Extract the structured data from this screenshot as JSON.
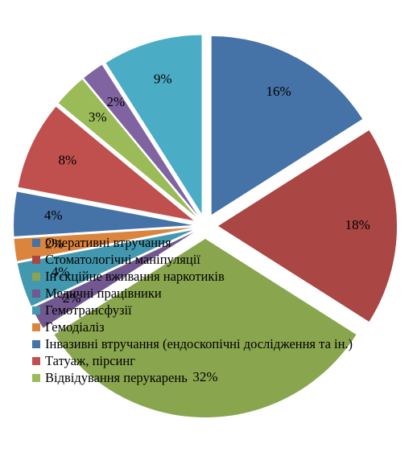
{
  "chart_data": {
    "type": "pie",
    "title": "",
    "legend_position": "overlay-center-left",
    "slices": [
      {
        "name": "Оперативні втручання",
        "value": 16,
        "label": "16%",
        "color": "#4572A7"
      },
      {
        "name": "Стоматологічні маніпуляції",
        "value": 18,
        "label": "18%",
        "color": "#AA4643"
      },
      {
        "name": "Ін'єкційне вживання наркотиків",
        "value": 32,
        "label": "32%",
        "color": "#89A54E"
      },
      {
        "name": "Медичні працівники",
        "value": 2,
        "label": "2%",
        "color": "#71588F"
      },
      {
        "name": "Гемотрансфузії",
        "value": 4,
        "label": "4%",
        "color": "#4198AF"
      },
      {
        "name": "Гемодіаліз",
        "value": 2,
        "label": "2%",
        "color": "#DB843D"
      },
      {
        "name": "Інвазивні втручання (ендоскопічні дослідження та ін.)",
        "value": 4,
        "label": "4%",
        "color": "#4572A7"
      },
      {
        "name": "Татуаж, пірсинг",
        "value": 8,
        "label": "8%",
        "color": "#C0504D"
      },
      {
        "name": "Відвідування перукарень",
        "value": 3,
        "label": "3%",
        "color": "#9BBB59"
      },
      {
        "name": "",
        "value": 2,
        "label": "2%",
        "color": "#8064A2"
      },
      {
        "name": "",
        "value": 9,
        "label": "9%",
        "color": "#4BACC6"
      }
    ]
  }
}
